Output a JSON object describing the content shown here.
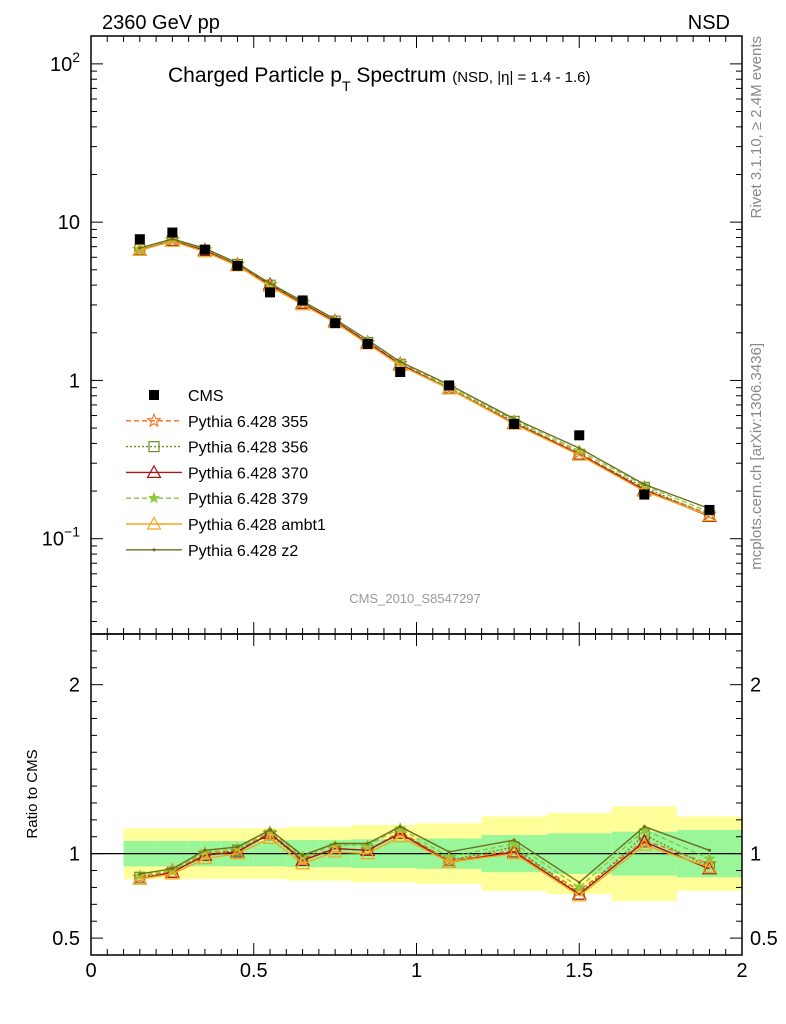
{
  "header": {
    "left": "2360 GeV pp",
    "right": "NSD"
  },
  "side_labels": {
    "rivet": "Rivet 3.1.10, ≥ 2.4M events",
    "mcplots": "mcplots.cern.ch [arXiv:1306.3436]"
  },
  "chart_data": {
    "type": "scatter",
    "title": "Charged Particle p",
    "title_sub": "T",
    "title_main_rest": " Spectrum",
    "title_suffix": "(NSD, |η| = 1.4 - 1.6)",
    "analysis_tag": "CMS_2010_S8547297",
    "y_scale": "log",
    "ylim": [
      0.025,
      150
    ],
    "xlim": [
      0,
      2
    ],
    "y_ticks": [
      {
        "value": 0.1,
        "base": "10",
        "exp": "−1"
      },
      {
        "value": 1,
        "base": "1",
        "exp": ""
      },
      {
        "value": 10,
        "base": "10",
        "exp": ""
      },
      {
        "value": 100,
        "base": "10",
        "exp": "2"
      }
    ],
    "x_ticks": [
      "0",
      "0.5",
      "1",
      "1.5",
      "2"
    ],
    "x": [
      0.15,
      0.25,
      0.35,
      0.45,
      0.55,
      0.65,
      0.75,
      0.85,
      0.95,
      1.1,
      1.3,
      1.5,
      1.7,
      1.9
    ],
    "bin_edges": [
      0.1,
      0.2,
      0.3,
      0.4,
      0.5,
      0.6,
      0.7,
      0.8,
      0.9,
      1.0,
      1.2,
      1.4,
      1.6,
      1.8,
      2.0
    ],
    "data": {
      "name": "CMS",
      "color": "#000000",
      "values": [
        7.8,
        8.6,
        6.7,
        5.3,
        3.6,
        3.2,
        2.3,
        1.7,
        1.13,
        0.93,
        0.53,
        0.45,
        0.19,
        0.152
      ]
    },
    "series": [
      {
        "name": "Pythia 6.428 355",
        "color": "#ff6a1a",
        "marker": "star-open",
        "dash": "5,3",
        "ratio": [
          0.86,
          0.9,
          1.0,
          1.02,
          1.12,
          0.97,
          1.03,
          1.02,
          1.13,
          0.96,
          1.02,
          0.78,
          1.08,
          0.94
        ]
      },
      {
        "name": "Pythia 6.428 356",
        "color": "#6b8e23",
        "marker": "square-open",
        "dash": "2,2",
        "ratio": [
          0.86,
          0.89,
          0.99,
          1.02,
          1.11,
          0.96,
          1.03,
          1.02,
          1.12,
          0.96,
          1.04,
          0.76,
          1.11,
          0.92
        ]
      },
      {
        "name": "Pythia 6.428 370",
        "color": "#a01818",
        "marker": "triangle-open",
        "dash": "",
        "ratio": [
          0.85,
          0.89,
          0.99,
          1.01,
          1.12,
          0.96,
          1.03,
          1.02,
          1.12,
          0.95,
          1.01,
          0.76,
          1.07,
          0.91
        ]
      },
      {
        "name": "Pythia 6.428 379",
        "color": "#8cc83c",
        "marker": "star-filled",
        "dash": "5,3",
        "ratio": [
          0.87,
          0.9,
          1.01,
          1.03,
          1.13,
          0.98,
          1.05,
          1.05,
          1.15,
          0.98,
          1.06,
          0.8,
          1.14,
          0.97
        ]
      },
      {
        "name": "Pythia 6.428 ambt1",
        "color": "#f5a623",
        "marker": "triangle-open",
        "dash": "",
        "ratio": [
          0.85,
          0.88,
          0.97,
          1.0,
          1.09,
          0.94,
          1.01,
          1.0,
          1.1,
          0.95,
          1.0,
          0.75,
          1.05,
          0.92
        ]
      },
      {
        "name": "Pythia 6.428 z2",
        "color": "#6e6e1e",
        "marker": "dot",
        "dash": "",
        "ratio": [
          0.88,
          0.91,
          1.02,
          1.04,
          1.14,
          0.99,
          1.06,
          1.06,
          1.16,
          1.01,
          1.08,
          0.83,
          1.16,
          1.02
        ]
      }
    ],
    "ratio_panel": {
      "ylabel": "Ratio to CMS",
      "ylim": [
        0.4,
        2.3
      ],
      "y_ticks": [
        "0.5",
        "1",
        "2"
      ],
      "y_tick_values": [
        0.5,
        1,
        2
      ],
      "band_inner": [
        0.075,
        0.075,
        0.075,
        0.075,
        0.075,
        0.08,
        0.08,
        0.085,
        0.085,
        0.09,
        0.11,
        0.12,
        0.13,
        0.14
      ],
      "band_outer": [
        0.15,
        0.15,
        0.15,
        0.15,
        0.15,
        0.16,
        0.16,
        0.17,
        0.17,
        0.18,
        0.22,
        0.24,
        0.28,
        0.22
      ],
      "inner_color": "#99f799",
      "outer_color": "#ffff99"
    }
  }
}
